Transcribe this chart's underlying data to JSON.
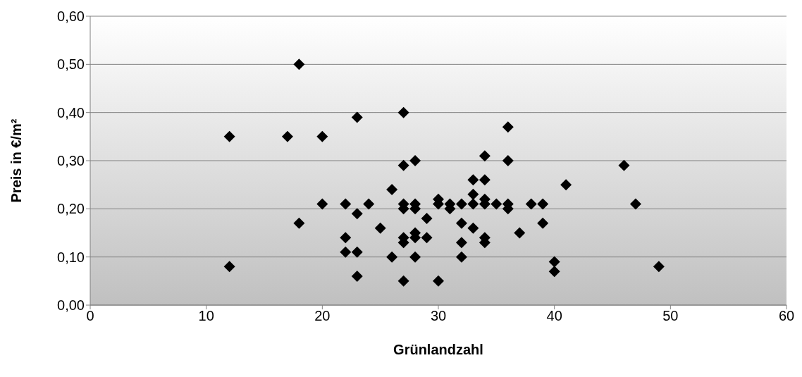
{
  "chart_data": {
    "type": "scatter",
    "xlabel": "Grünlandzahl",
    "ylabel": "Preis in €/m²",
    "marker": "diamond",
    "grid": "y",
    "xlim": [
      0,
      60
    ],
    "xticks": [
      0,
      10,
      20,
      30,
      40,
      50,
      60
    ],
    "ylim": [
      0,
      0.6
    ],
    "yticks": [
      {
        "value": 0,
        "label": "0,00"
      },
      {
        "value": 0.1,
        "label": "0,10"
      },
      {
        "value": 0.2,
        "label": "0,20"
      },
      {
        "value": 0.3,
        "label": "0,30"
      },
      {
        "value": 0.4,
        "label": "0,40"
      },
      {
        "value": 0.5,
        "label": "0,50"
      },
      {
        "value": 0.6,
        "label": "0,60"
      }
    ],
    "x": [
      12,
      12,
      17,
      18,
      18,
      20,
      20,
      22,
      22,
      22,
      23,
      23,
      23,
      23,
      24,
      25,
      26,
      26,
      27,
      27,
      27,
      27,
      27,
      27,
      27,
      28,
      28,
      28,
      28,
      28,
      28,
      29,
      29,
      30,
      30,
      30,
      31,
      31,
      32,
      32,
      32,
      32,
      33,
      33,
      33,
      33,
      34,
      34,
      34,
      34,
      34,
      34,
      35,
      36,
      36,
      36,
      36,
      37,
      38,
      39,
      39,
      40,
      40,
      41,
      46,
      47,
      49
    ],
    "series": [
      {
        "color": "#000000",
        "values": [
          0.35,
          0.08,
          0.35,
          0.5,
          0.17,
          0.35,
          0.21,
          0.21,
          0.14,
          0.11,
          0.39,
          0.19,
          0.11,
          0.06,
          0.21,
          0.16,
          0.24,
          0.1,
          0.4,
          0.29,
          0.21,
          0.2,
          0.14,
          0.13,
          0.05,
          0.3,
          0.21,
          0.2,
          0.15,
          0.14,
          0.1,
          0.18,
          0.14,
          0.22,
          0.21,
          0.05,
          0.21,
          0.2,
          0.21,
          0.17,
          0.13,
          0.1,
          0.26,
          0.23,
          0.21,
          0.16,
          0.31,
          0.26,
          0.22,
          0.21,
          0.14,
          0.13,
          0.21,
          0.37,
          0.3,
          0.21,
          0.2,
          0.15,
          0.21,
          0.21,
          0.17,
          0.09,
          0.07,
          0.25,
          0.29,
          0.21,
          0.08
        ]
      }
    ]
  }
}
